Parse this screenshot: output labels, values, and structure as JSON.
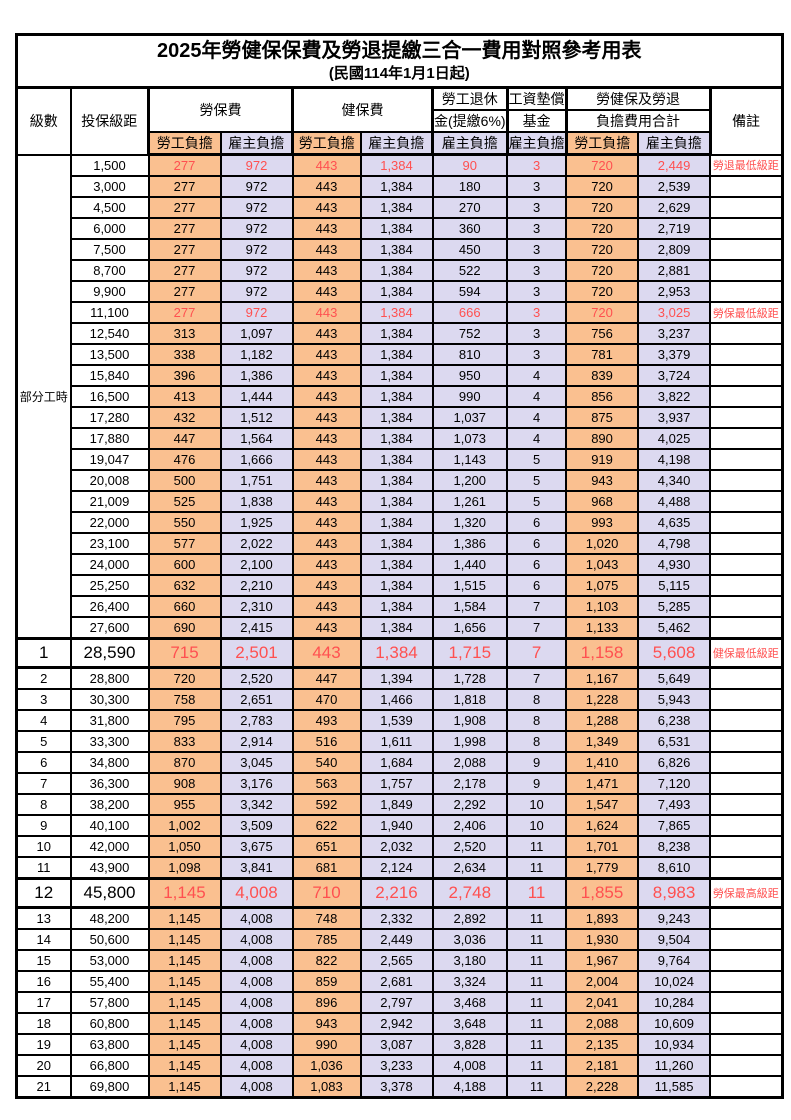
{
  "title": {
    "main": "2025年勞健保保費及勞退提繳三合一費用對照參考用表",
    "sub": "(民國114年1月1日起)"
  },
  "colors": {
    "employee_bg": "#FAC090",
    "employer_bg": "#DCD9F0",
    "highlight_text": "#FF5050",
    "border": "#000000",
    "page_bg": "#FFFFFF"
  },
  "table": {
    "headers": {
      "level": "級數",
      "bracket": "投保級距",
      "labor_insurance": "勞保費",
      "health_insurance": "健保費",
      "pension_line1": "勞工退休",
      "pension_line2": "金(提繳6%)",
      "wage_fund_line1": "工資墊償",
      "wage_fund_line2": "基金",
      "total_line1": "勞健保及勞退",
      "total_line2": "負擔費用合計",
      "note": "備註",
      "employee": "勞工負擔",
      "employer": "雇主負擔"
    },
    "part_time_label": "部分工時",
    "part_time_row_count": 23,
    "rows": [
      {
        "level": "",
        "bracket": "1,500",
        "values": [
          "277",
          "972",
          "443",
          "1,384",
          "90",
          "3",
          "720",
          "2,449"
        ],
        "note": "勞退最低級距",
        "highlight": true,
        "emphasis": false
      },
      {
        "level": "",
        "bracket": "3,000",
        "values": [
          "277",
          "972",
          "443",
          "1,384",
          "180",
          "3",
          "720",
          "2,539"
        ],
        "note": "",
        "highlight": false,
        "emphasis": false
      },
      {
        "level": "",
        "bracket": "4,500",
        "values": [
          "277",
          "972",
          "443",
          "1,384",
          "270",
          "3",
          "720",
          "2,629"
        ],
        "note": "",
        "highlight": false,
        "emphasis": false
      },
      {
        "level": "",
        "bracket": "6,000",
        "values": [
          "277",
          "972",
          "443",
          "1,384",
          "360",
          "3",
          "720",
          "2,719"
        ],
        "note": "",
        "highlight": false,
        "emphasis": false
      },
      {
        "level": "",
        "bracket": "7,500",
        "values": [
          "277",
          "972",
          "443",
          "1,384",
          "450",
          "3",
          "720",
          "2,809"
        ],
        "note": "",
        "highlight": false,
        "emphasis": false
      },
      {
        "level": "",
        "bracket": "8,700",
        "values": [
          "277",
          "972",
          "443",
          "1,384",
          "522",
          "3",
          "720",
          "2,881"
        ],
        "note": "",
        "highlight": false,
        "emphasis": false
      },
      {
        "level": "",
        "bracket": "9,900",
        "values": [
          "277",
          "972",
          "443",
          "1,384",
          "594",
          "3",
          "720",
          "2,953"
        ],
        "note": "",
        "highlight": false,
        "emphasis": false
      },
      {
        "level": "",
        "bracket": "11,100",
        "values": [
          "277",
          "972",
          "443",
          "1,384",
          "666",
          "3",
          "720",
          "3,025"
        ],
        "note": "勞保最低級距",
        "highlight": true,
        "emphasis": false
      },
      {
        "level": "",
        "bracket": "12,540",
        "values": [
          "313",
          "1,097",
          "443",
          "1,384",
          "752",
          "3",
          "756",
          "3,237"
        ],
        "note": "",
        "highlight": false,
        "emphasis": false
      },
      {
        "level": "",
        "bracket": "13,500",
        "values": [
          "338",
          "1,182",
          "443",
          "1,384",
          "810",
          "3",
          "781",
          "3,379"
        ],
        "note": "",
        "highlight": false,
        "emphasis": false
      },
      {
        "level": "",
        "bracket": "15,840",
        "values": [
          "396",
          "1,386",
          "443",
          "1,384",
          "950",
          "4",
          "839",
          "3,724"
        ],
        "note": "",
        "highlight": false,
        "emphasis": false
      },
      {
        "level": "",
        "bracket": "16,500",
        "values": [
          "413",
          "1,444",
          "443",
          "1,384",
          "990",
          "4",
          "856",
          "3,822"
        ],
        "note": "",
        "highlight": false,
        "emphasis": false
      },
      {
        "level": "",
        "bracket": "17,280",
        "values": [
          "432",
          "1,512",
          "443",
          "1,384",
          "1,037",
          "4",
          "875",
          "3,937"
        ],
        "note": "",
        "highlight": false,
        "emphasis": false
      },
      {
        "level": "",
        "bracket": "17,880",
        "values": [
          "447",
          "1,564",
          "443",
          "1,384",
          "1,073",
          "4",
          "890",
          "4,025"
        ],
        "note": "",
        "highlight": false,
        "emphasis": false
      },
      {
        "level": "",
        "bracket": "19,047",
        "values": [
          "476",
          "1,666",
          "443",
          "1,384",
          "1,143",
          "5",
          "919",
          "4,198"
        ],
        "note": "",
        "highlight": false,
        "emphasis": false
      },
      {
        "level": "",
        "bracket": "20,008",
        "values": [
          "500",
          "1,751",
          "443",
          "1,384",
          "1,200",
          "5",
          "943",
          "4,340"
        ],
        "note": "",
        "highlight": false,
        "emphasis": false
      },
      {
        "level": "",
        "bracket": "21,009",
        "values": [
          "525",
          "1,838",
          "443",
          "1,384",
          "1,261",
          "5",
          "968",
          "4,488"
        ],
        "note": "",
        "highlight": false,
        "emphasis": false
      },
      {
        "level": "",
        "bracket": "22,000",
        "values": [
          "550",
          "1,925",
          "443",
          "1,384",
          "1,320",
          "6",
          "993",
          "4,635"
        ],
        "note": "",
        "highlight": false,
        "emphasis": false
      },
      {
        "level": "",
        "bracket": "23,100",
        "values": [
          "577",
          "2,022",
          "443",
          "1,384",
          "1,386",
          "6",
          "1,020",
          "4,798"
        ],
        "note": "",
        "highlight": false,
        "emphasis": false
      },
      {
        "level": "",
        "bracket": "24,000",
        "values": [
          "600",
          "2,100",
          "443",
          "1,384",
          "1,440",
          "6",
          "1,043",
          "4,930"
        ],
        "note": "",
        "highlight": false,
        "emphasis": false
      },
      {
        "level": "",
        "bracket": "25,250",
        "values": [
          "632",
          "2,210",
          "443",
          "1,384",
          "1,515",
          "6",
          "1,075",
          "5,115"
        ],
        "note": "",
        "highlight": false,
        "emphasis": false
      },
      {
        "level": "",
        "bracket": "26,400",
        "values": [
          "660",
          "2,310",
          "443",
          "1,384",
          "1,584",
          "7",
          "1,103",
          "5,285"
        ],
        "note": "",
        "highlight": false,
        "emphasis": false
      },
      {
        "level": "",
        "bracket": "27,600",
        "values": [
          "690",
          "2,415",
          "443",
          "1,384",
          "1,656",
          "7",
          "1,133",
          "5,462"
        ],
        "note": "",
        "highlight": false,
        "emphasis": false
      },
      {
        "level": "1",
        "bracket": "28,590",
        "values": [
          "715",
          "2,501",
          "443",
          "1,384",
          "1,715",
          "7",
          "1,158",
          "5,608"
        ],
        "note": "健保最低級距",
        "highlight": true,
        "emphasis": true
      },
      {
        "level": "2",
        "bracket": "28,800",
        "values": [
          "720",
          "2,520",
          "447",
          "1,394",
          "1,728",
          "7",
          "1,167",
          "5,649"
        ],
        "note": "",
        "highlight": false,
        "emphasis": false
      },
      {
        "level": "3",
        "bracket": "30,300",
        "values": [
          "758",
          "2,651",
          "470",
          "1,466",
          "1,818",
          "8",
          "1,228",
          "5,943"
        ],
        "note": "",
        "highlight": false,
        "emphasis": false
      },
      {
        "level": "4",
        "bracket": "31,800",
        "values": [
          "795",
          "2,783",
          "493",
          "1,539",
          "1,908",
          "8",
          "1,288",
          "6,238"
        ],
        "note": "",
        "highlight": false,
        "emphasis": false
      },
      {
        "level": "5",
        "bracket": "33,300",
        "values": [
          "833",
          "2,914",
          "516",
          "1,611",
          "1,998",
          "8",
          "1,349",
          "6,531"
        ],
        "note": "",
        "highlight": false,
        "emphasis": false
      },
      {
        "level": "6",
        "bracket": "34,800",
        "values": [
          "870",
          "3,045",
          "540",
          "1,684",
          "2,088",
          "9",
          "1,410",
          "6,826"
        ],
        "note": "",
        "highlight": false,
        "emphasis": false
      },
      {
        "level": "7",
        "bracket": "36,300",
        "values": [
          "908",
          "3,176",
          "563",
          "1,757",
          "2,178",
          "9",
          "1,471",
          "7,120"
        ],
        "note": "",
        "highlight": false,
        "emphasis": false
      },
      {
        "level": "8",
        "bracket": "38,200",
        "values": [
          "955",
          "3,342",
          "592",
          "1,849",
          "2,292",
          "10",
          "1,547",
          "7,493"
        ],
        "note": "",
        "highlight": false,
        "emphasis": false
      },
      {
        "level": "9",
        "bracket": "40,100",
        "values": [
          "1,002",
          "3,509",
          "622",
          "1,940",
          "2,406",
          "10",
          "1,624",
          "7,865"
        ],
        "note": "",
        "highlight": false,
        "emphasis": false
      },
      {
        "level": "10",
        "bracket": "42,000",
        "values": [
          "1,050",
          "3,675",
          "651",
          "2,032",
          "2,520",
          "11",
          "1,701",
          "8,238"
        ],
        "note": "",
        "highlight": false,
        "emphasis": false
      },
      {
        "level": "11",
        "bracket": "43,900",
        "values": [
          "1,098",
          "3,841",
          "681",
          "2,124",
          "2,634",
          "11",
          "1,779",
          "8,610"
        ],
        "note": "",
        "highlight": false,
        "emphasis": false
      },
      {
        "level": "12",
        "bracket": "45,800",
        "values": [
          "1,145",
          "4,008",
          "710",
          "2,216",
          "2,748",
          "11",
          "1,855",
          "8,983"
        ],
        "note": "勞保最高級距",
        "highlight": true,
        "emphasis": true
      },
      {
        "level": "13",
        "bracket": "48,200",
        "values": [
          "1,145",
          "4,008",
          "748",
          "2,332",
          "2,892",
          "11",
          "1,893",
          "9,243"
        ],
        "note": "",
        "highlight": false,
        "emphasis": false
      },
      {
        "level": "14",
        "bracket": "50,600",
        "values": [
          "1,145",
          "4,008",
          "785",
          "2,449",
          "3,036",
          "11",
          "1,930",
          "9,504"
        ],
        "note": "",
        "highlight": false,
        "emphasis": false
      },
      {
        "level": "15",
        "bracket": "53,000",
        "values": [
          "1,145",
          "4,008",
          "822",
          "2,565",
          "3,180",
          "11",
          "1,967",
          "9,764"
        ],
        "note": "",
        "highlight": false,
        "emphasis": false
      },
      {
        "level": "16",
        "bracket": "55,400",
        "values": [
          "1,145",
          "4,008",
          "859",
          "2,681",
          "3,324",
          "11",
          "2,004",
          "10,024"
        ],
        "note": "",
        "highlight": false,
        "emphasis": false
      },
      {
        "level": "17",
        "bracket": "57,800",
        "values": [
          "1,145",
          "4,008",
          "896",
          "2,797",
          "3,468",
          "11",
          "2,041",
          "10,284"
        ],
        "note": "",
        "highlight": false,
        "emphasis": false
      },
      {
        "level": "18",
        "bracket": "60,800",
        "values": [
          "1,145",
          "4,008",
          "943",
          "2,942",
          "3,648",
          "11",
          "2,088",
          "10,609"
        ],
        "note": "",
        "highlight": false,
        "emphasis": false
      },
      {
        "level": "19",
        "bracket": "63,800",
        "values": [
          "1,145",
          "4,008",
          "990",
          "3,087",
          "3,828",
          "11",
          "2,135",
          "10,934"
        ],
        "note": "",
        "highlight": false,
        "emphasis": false
      },
      {
        "level": "20",
        "bracket": "66,800",
        "values": [
          "1,145",
          "4,008",
          "1,036",
          "3,233",
          "4,008",
          "11",
          "2,181",
          "11,260"
        ],
        "note": "",
        "highlight": false,
        "emphasis": false
      },
      {
        "level": "21",
        "bracket": "69,800",
        "values": [
          "1,145",
          "4,008",
          "1,083",
          "3,378",
          "4,188",
          "11",
          "2,228",
          "11,585"
        ],
        "note": "",
        "highlight": false,
        "emphasis": false
      }
    ]
  }
}
